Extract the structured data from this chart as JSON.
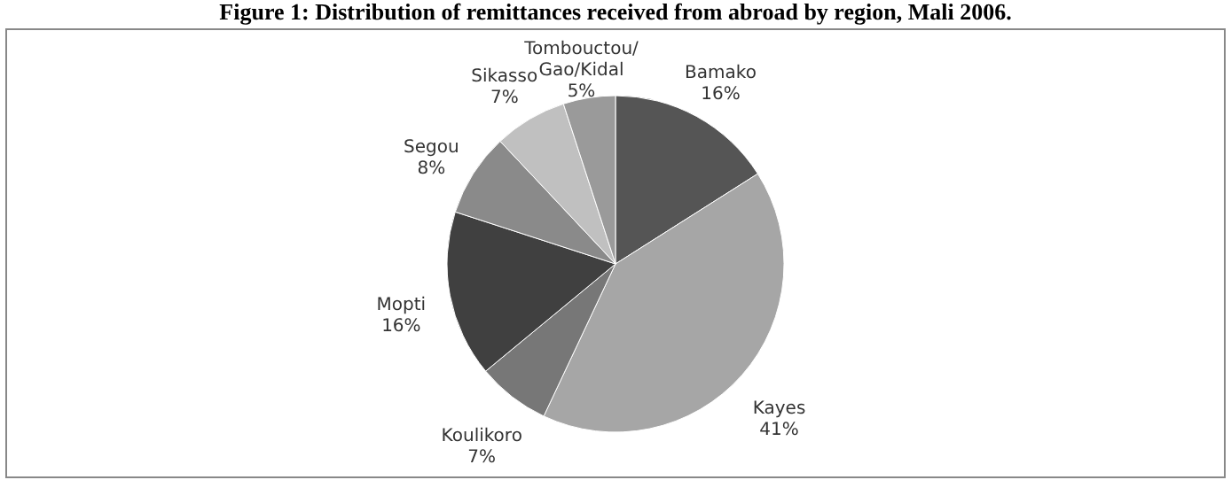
{
  "chart_data": {
    "type": "pie",
    "title": "Figure 1: Distribution of remittances received from abroad by region, Mali 2006.",
    "categories": [
      "Bamako",
      "Kayes",
      "Koulikoro",
      "Mopti",
      "Segou",
      "Sikasso",
      "Tombouctou/Gao/Kidal"
    ],
    "values": [
      16,
      41,
      7,
      16,
      8,
      7,
      5
    ],
    "value_labels": [
      "16%",
      "41%",
      "7%",
      "16%",
      "8%",
      "7%",
      "5%"
    ],
    "colors": [
      "#555555",
      "#a6a6a6",
      "#777777",
      "#404040",
      "#8a8a8a",
      "#c0c0c0",
      "#9a9a9a"
    ]
  }
}
